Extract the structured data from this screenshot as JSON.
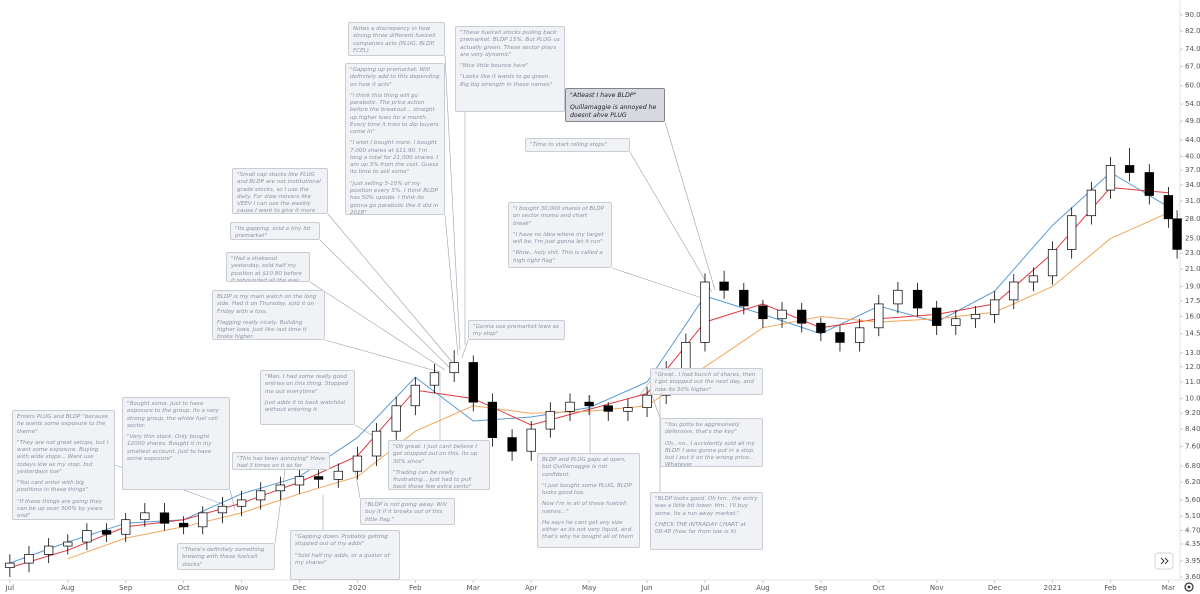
{
  "chart_data": {
    "type": "candlestick",
    "log_scale": true,
    "x": [
      0,
      0.33,
      0.67,
      1,
      1.33,
      1.67,
      2,
      2.33,
      2.67,
      3,
      3.33,
      3.67,
      4,
      4.33,
      4.67,
      5,
      5.33,
      5.67,
      6,
      6.33,
      6.67,
      7,
      7.33,
      7.67,
      8,
      8.33,
      8.67,
      9,
      9.33,
      9.67,
      10,
      10.33,
      10.67,
      11,
      11.33,
      11.67,
      12,
      12.33,
      12.67,
      13,
      13.33,
      13.67,
      14,
      14.33,
      14.67,
      15,
      15.33,
      15.67,
      16,
      16.33,
      16.67,
      17,
      17.33,
      17.67,
      18,
      18.33,
      18.67,
      19,
      19.33,
      19.67,
      20,
      20.15
    ],
    "open": [
      3.8,
      3.9,
      4.1,
      4.3,
      4.4,
      4.7,
      4.6,
      5.0,
      5.2,
      4.9,
      4.8,
      5.2,
      5.4,
      5.6,
      5.9,
      6.1,
      6.4,
      6.3,
      6.6,
      7.2,
      8.3,
      9.6,
      10.8,
      11.6,
      12.3,
      9.8,
      8.0,
      7.4,
      8.4,
      9.3,
      9.8,
      9.6,
      9.3,
      9.5,
      10.2,
      11.8,
      13.8,
      19.5,
      18.6,
      17.0,
      15.8,
      16.6,
      15.4,
      14.6,
      13.8,
      15.0,
      17.2,
      18.6,
      16.8,
      15.2,
      15.8,
      16.2,
      17.6,
      19.5,
      20.2,
      23.5,
      28.5,
      33.0,
      38.0,
      36.5,
      32.0,
      28.0
    ],
    "high": [
      4.1,
      4.3,
      4.5,
      4.6,
      4.9,
      4.9,
      5.2,
      5.5,
      5.5,
      5.1,
      5.4,
      5.7,
      5.9,
      6.2,
      6.4,
      6.7,
      6.7,
      6.9,
      7.6,
      8.7,
      10.1,
      11.3,
      12.2,
      13.2,
      12.8,
      10.3,
      8.4,
      8.8,
      9.8,
      10.3,
      10.2,
      9.8,
      10.0,
      10.7,
      12.4,
      14.5,
      20.5,
      20.8,
      19.4,
      17.6,
      17.4,
      17.3,
      15.9,
      15.2,
      15.8,
      18.1,
      19.5,
      19.4,
      17.5,
      16.6,
      17.0,
      18.5,
      20.4,
      21.2,
      24.6,
      29.9,
      34.6,
      39.9,
      42.0,
      38.3,
      33.6,
      29.4
    ],
    "low": [
      3.6,
      3.7,
      3.9,
      4.1,
      4.2,
      4.4,
      4.4,
      4.8,
      4.7,
      4.6,
      4.6,
      4.9,
      5.1,
      5.3,
      5.6,
      5.8,
      6.0,
      6.0,
      6.3,
      6.8,
      7.9,
      9.1,
      10.3,
      11.0,
      9.3,
      7.6,
      7.0,
      7.0,
      8.0,
      8.8,
      9.1,
      8.8,
      8.8,
      9.0,
      9.7,
      11.2,
      13.1,
      17.7,
      16.2,
      15.0,
      15.0,
      14.6,
      13.9,
      13.1,
      13.1,
      14.3,
      16.3,
      16.0,
      14.4,
      14.4,
      15.0,
      15.4,
      16.7,
      18.5,
      19.2,
      22.3,
      27.1,
      31.4,
      34.7,
      30.4,
      26.6,
      22.3
    ],
    "close": [
      3.9,
      4.1,
      4.3,
      4.4,
      4.7,
      4.6,
      5.0,
      5.2,
      4.9,
      4.8,
      5.2,
      5.4,
      5.6,
      5.9,
      6.1,
      6.4,
      6.3,
      6.6,
      7.2,
      8.3,
      9.6,
      10.8,
      11.6,
      12.3,
      9.8,
      8.0,
      7.4,
      8.4,
      9.3,
      9.8,
      9.6,
      9.3,
      9.5,
      10.2,
      11.8,
      13.8,
      19.5,
      18.6,
      17.0,
      15.8,
      16.6,
      15.4,
      14.6,
      13.8,
      15.0,
      17.2,
      18.6,
      16.8,
      15.2,
      15.8,
      16.2,
      17.6,
      19.5,
      20.2,
      23.5,
      28.5,
      33.0,
      38.0,
      36.5,
      32.0,
      28.0,
      23.5
    ],
    "up_color": "#ffffff",
    "down_color": "#000000",
    "series": [
      {
        "color": "#5b9bd5",
        "x": [
          0,
          1,
          2,
          3,
          4,
          5,
          6,
          7,
          8,
          9,
          10,
          11,
          12,
          13,
          14,
          15,
          16,
          17,
          18,
          19,
          20
        ],
        "values": [
          3.9,
          4.4,
          4.9,
          5.0,
          5.8,
          6.4,
          8.0,
          11.3,
          8.8,
          9.0,
          9.5,
          11.0,
          18.0,
          16.2,
          14.5,
          17.0,
          15.5,
          18.5,
          27.0,
          36.5,
          30.0
        ]
      },
      {
        "color": "#e0393e",
        "x": [
          0,
          1,
          2,
          3,
          4,
          5,
          6,
          7,
          8,
          9,
          10,
          11,
          12,
          13,
          14,
          15,
          16,
          17,
          18,
          19,
          20
        ],
        "values": [
          3.8,
          4.2,
          4.8,
          5.0,
          5.5,
          6.2,
          7.2,
          10.5,
          10.0,
          8.6,
          9.4,
          10.3,
          15.5,
          17.2,
          15.0,
          15.8,
          16.2,
          17.2,
          23.0,
          33.5,
          32.5
        ]
      },
      {
        "color": "#f2a65a",
        "x": [
          0,
          1,
          2,
          3,
          4,
          5,
          6,
          7,
          8,
          9,
          10,
          11,
          12,
          13,
          14,
          15,
          16,
          17,
          18,
          19,
          20
        ],
        "values": [
          null,
          4.0,
          4.5,
          4.8,
          5.2,
          5.8,
          6.4,
          8.3,
          9.6,
          9.2,
          9.3,
          9.6,
          12.0,
          15.0,
          16.0,
          15.5,
          15.8,
          16.4,
          19.0,
          25.0,
          29.0
        ]
      }
    ],
    "xlim": [
      -0.17,
      20.2
    ],
    "xticks": [
      {
        "value": 0,
        "label": "Jul"
      },
      {
        "value": 1,
        "label": "Aug"
      },
      {
        "value": 2,
        "label": "Sep"
      },
      {
        "value": 3,
        "label": "Oct"
      },
      {
        "value": 4,
        "label": "Nov"
      },
      {
        "value": 5,
        "label": "Dec"
      },
      {
        "value": 6,
        "label": "2020"
      },
      {
        "value": 7,
        "label": "Feb"
      },
      {
        "value": 8,
        "label": "Mar"
      },
      {
        "value": 9,
        "label": "Apr"
      },
      {
        "value": 10,
        "label": "May"
      },
      {
        "value": 11,
        "label": "Jun"
      },
      {
        "value": 12,
        "label": "Jul"
      },
      {
        "value": 13,
        "label": "Aug"
      },
      {
        "value": 14,
        "label": "Sep"
      },
      {
        "value": 15,
        "label": "Oct"
      },
      {
        "value": 16,
        "label": "Nov"
      },
      {
        "value": 17,
        "label": "Dec"
      },
      {
        "value": 18,
        "label": "2021"
      },
      {
        "value": 19,
        "label": "Feb"
      },
      {
        "value": 20,
        "label": "Mar"
      }
    ],
    "ylim": [
      3.5,
      98
    ],
    "yticks": [
      {
        "value": 90,
        "label": "90.00"
      },
      {
        "value": 82,
        "label": "82.00"
      },
      {
        "value": 74,
        "label": "74.00"
      },
      {
        "value": 67,
        "label": "67.00"
      },
      {
        "value": 60,
        "label": "60.00"
      },
      {
        "value": 54,
        "label": "54.00"
      },
      {
        "value": 49,
        "label": "49.00"
      },
      {
        "value": 44,
        "label": "44.00"
      },
      {
        "value": 40,
        "label": "40.00"
      },
      {
        "value": 37,
        "label": "37.00"
      },
      {
        "value": 34,
        "label": "34.00"
      },
      {
        "value": 31,
        "label": "31.00"
      },
      {
        "value": 28,
        "label": "28.00"
      },
      {
        "value": 25,
        "label": "25.00"
      },
      {
        "value": 23,
        "label": "23.00"
      },
      {
        "value": 21,
        "label": "21.00"
      },
      {
        "value": 19,
        "label": "19.00"
      },
      {
        "value": 17.5,
        "label": "17.50"
      },
      {
        "value": 16,
        "label": "16.00"
      },
      {
        "value": 14.5,
        "label": "14.50"
      },
      {
        "value": 13,
        "label": "13.00"
      },
      {
        "value": 12,
        "label": "12.00"
      },
      {
        "value": 11,
        "label": "11.00"
      },
      {
        "value": 10,
        "label": "10.00"
      },
      {
        "value": 9.2,
        "label": "9.20"
      },
      {
        "value": 8.4,
        "label": "8.40"
      },
      {
        "value": 7.6,
        "label": "7.60"
      },
      {
        "value": 6.8,
        "label": "6.80"
      },
      {
        "value": 6.2,
        "label": "6.20"
      },
      {
        "value": 5.6,
        "label": "5.60"
      },
      {
        "value": 5.1,
        "label": "5.10"
      },
      {
        "value": 4.7,
        "label": "4.70"
      },
      {
        "value": 4.35,
        "label": "4.35"
      },
      {
        "value": 3.95,
        "label": "3.95"
      },
      {
        "value": 3.6,
        "label": "3.60"
      }
    ],
    "annotations": [
      {
        "paragraphs": [
          "Enters PLUG and BLDP \"because he wants some exposure to the theme\"",
          "\"They are not great setups, but I want some exposure. Buying with wide stops... Want use todays low as my stop, but yesterdays low\"",
          "\"You cant enter with big positions in these things\"",
          "\"If these things are going they can be up over 300% by years end\""
        ]
      },
      {
        "paragraphs": [
          "\"Bought some. Just to have exposure to the group. Its a very strong group, the whole fuel cell sector.",
          "\"Very thin stock. Only bought 12000 shares. Bought it in my smallest account. Just to have some exposure\""
        ]
      },
      {
        "paragraphs": [
          "\"There's definitely something brewing with these fuelcell stocks\""
        ]
      },
      {
        "paragraphs": [
          "\"This has been annoying\" Have had 3 times on it so far"
        ]
      },
      {
        "paragraphs": [
          "\"Man, I had some really good entries on this thing. Stopped me out everytime\"",
          "Just adds it to back watchlist without entering it"
        ]
      },
      {
        "paragraphs": [
          "\"Gapping down. Probably getting stopped out of my adds\"",
          "\"Sold half my adds, or a quater of my shares\""
        ]
      },
      {
        "paragraphs": [
          "\"BLDP is not going away. Will buy it if it breaks out of this little flag.\""
        ]
      },
      {
        "paragraphs": [
          "\"Oh great. I just cant believe I got stopped out on this. Its up 30% since\"",
          "\"Trading can be really frustrating... just had to pull back those few extra cents\""
        ]
      },
      {
        "paragraphs": [
          "BLDP is my main watch on the long side. Had it on Thursday, sold it on Friday with a loss.",
          "Flagging really nicely. Building higher lows. Just like last time it broke higher."
        ]
      },
      {
        "paragraphs": [
          "\"Had a shakeout yesterday, sold half my position at $10.80 before it rebounded all the way back\""
        ]
      },
      {
        "paragraphs": [
          "\"Its gapping, sold a tiny bit premarket\""
        ]
      },
      {
        "paragraphs": [
          "\"Small cap stocks like PLUG and BLDP are not institutional grade stocks, so I use the daily. For slow movers like VEEV I can use the weekly cause I want to give it more room\""
        ]
      },
      {
        "paragraphs": [
          "\"Gapping up premarket. Will definitely add to this depending on how it acts\"",
          "\"I think this thing will go parabolic. The price action before the breakout... straight up higher lows for a month. Every time it tries to dip buyers come in\"",
          "\"I wish I bought more. I bought 7,000 shares at $11.90. I'm long a total for 21,000 shares. I am up 3% from the cost. Guess its time to sell some\"",
          "\"Just selling 5-10% of my position every 5%. I think BLDP has 50% upside. I think its gonna go parabolic like it did in 2018\""
        ]
      },
      {
        "paragraphs": [
          "Notes a discrepancy in how strong three different fuelcell companies acts (PLUG, BLDP, FCEL)"
        ]
      },
      {
        "paragraphs": [
          "\"These fuelcell stocks pulling back premarket. BLDP 15%. But PLUG us actually green. These sector plays are very dynamic\"",
          "\"Nice little bounce here\"",
          "\"Looks like it wants to go green. Big big strength in these names\""
        ]
      },
      {
        "paragraphs": [
          "\"Gonna use premarket lows as my stop\""
        ]
      },
      {
        "paragraphs": [
          "\"Atleast I have BLDP\"",
          "Quillamaggie is annoyed he doesnt ahve PLUG"
        ]
      },
      {
        "paragraphs": [
          "\"Time to start rolling stops\""
        ]
      },
      {
        "paragraphs": [
          "\"I bought 30,000 shares of BLDP on sector momo and chart break\"",
          "\"I have no idea where my target will be. I'm just gonna let it run\"",
          "\"Wow.. holy shit. This is called a high tight flag\""
        ]
      },
      {
        "paragraphs": [
          "BLDP and PLUG gaps at open, but Quillamaggie is not confident.",
          "\"I just bought some PLUG, BLDP looks good too.",
          "Now I'm in all of these fuelcell names...\"",
          "He says he cant get any size either as its not very liquid, and that's why he bought all of them"
        ]
      },
      {
        "paragraphs": [
          "\"Great.. I had bunch of shares, then I got stopped out the next day, and now its 30% higher\""
        ]
      },
      {
        "paragraphs": [
          "\"You gotta be aggressively defensive, that's the key\"",
          "Oh.. no.. I accidently sold all my BLDP. I was gonna put in a stop, but I put it on the wrong price... Whatever"
        ]
      },
      {
        "paragraphs": [
          "\"BLDP looks good. Oh hm.. the entry was a little bit lower. Hm.. I'll buy some. Its a run away market.\"",
          "CHECK THE INTRADAY CHART at 09:48 (how far from low is it)"
        ]
      }
    ]
  }
}
